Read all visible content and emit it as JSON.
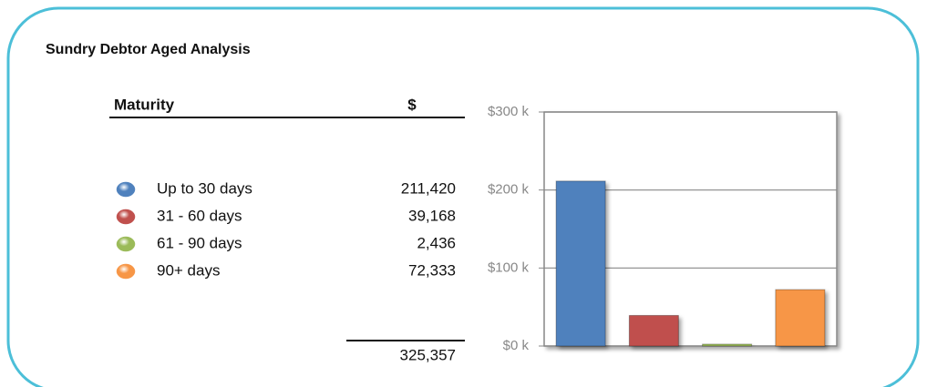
{
  "title": "Sundry Debtor Aged Analysis",
  "table": {
    "headers": [
      "Maturity",
      "$"
    ],
    "rows": [
      [
        "Up to 30 days",
        "211,420"
      ],
      [
        "31 - 60 days",
        "39,168"
      ],
      [
        "61 - 90 days",
        "2,436"
      ],
      [
        "90+ days",
        "72,333"
      ]
    ],
    "total": "325,357"
  },
  "chart_data": {
    "type": "bar",
    "categories": [
      null,
      null,
      null,
      null
    ],
    "values": [
      211420,
      39168,
      2436,
      72333
    ],
    "colors": [
      "#4f81bd",
      "#c0504d",
      "#9bbb59",
      "#f79646"
    ],
    "ylim": [
      0,
      300000
    ],
    "yticks": [
      {
        "value": 0,
        "label": "$0 k"
      },
      {
        "value": 100000,
        "label": "$100 k"
      },
      {
        "value": 200000,
        "label": "$200 k"
      },
      {
        "value": 300000,
        "label": "$300 k"
      }
    ],
    "grid": true
  }
}
